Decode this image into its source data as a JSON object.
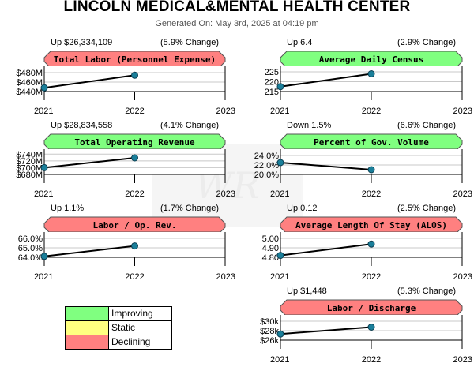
{
  "title": "LINCOLN MEDICAL&MENTAL HEALTH CENTER",
  "subtitle": "Generated On: May 3rd, 2025 at 04:19 pm",
  "colors": {
    "improving": "#80ff80",
    "static": "#ffff80",
    "declining": "#ff8080",
    "line": "#000000",
    "point": "#1a7f9a"
  },
  "legend": [
    {
      "label": "Improving",
      "color": "#80ff80"
    },
    {
      "label": "Static",
      "color": "#ffff80"
    },
    {
      "label": "Declining",
      "color": "#ff8080"
    }
  ],
  "chart_data": [
    {
      "type": "line",
      "title": "Total Labor (Personnel Expense)",
      "status": "declining",
      "change_text": "Up $26,334,109",
      "pct_text": "(5.9% Change)",
      "x": [
        2021,
        2022
      ],
      "xticks": [
        "2021",
        "2022",
        "2023"
      ],
      "xlim": [
        2021,
        2023
      ],
      "values": [
        448000000,
        474500000
      ],
      "ylim": [
        440000000,
        490000000
      ],
      "yticks": [
        440000000,
        460000000,
        480000000
      ],
      "yticklabels": [
        "$440M",
        "$460M",
        "$480M"
      ]
    },
    {
      "type": "line",
      "title": "Average Daily Census",
      "status": "improving",
      "change_text": "Up 6.4",
      "pct_text": "(2.9% Change)",
      "x": [
        2021,
        2022
      ],
      "xticks": [
        "2021",
        "2022",
        "2023"
      ],
      "xlim": [
        2021,
        2023
      ],
      "values": [
        217.5,
        224.0
      ],
      "ylim": [
        215,
        227
      ],
      "yticks": [
        215,
        220,
        225
      ],
      "yticklabels": [
        "215",
        "220",
        "225"
      ]
    },
    {
      "type": "line",
      "title": "Total Operating Revenue",
      "status": "improving",
      "change_text": "Up $28,834,558",
      "pct_text": "(4.1% Change)",
      "x": [
        2021,
        2022
      ],
      "xticks": [
        "2021",
        "2022",
        "2023"
      ],
      "xlim": [
        2021,
        2023
      ],
      "values": [
        700000000,
        729000000
      ],
      "ylim": [
        680000000,
        750000000
      ],
      "yticks": [
        680000000,
        700000000,
        720000000,
        740000000
      ],
      "yticklabels": [
        "$680M",
        "$700M",
        "$720M",
        "$740M"
      ]
    },
    {
      "type": "line",
      "title": "Percent of Gov. Volume",
      "status": "improving",
      "change_text": "Down 1.5%",
      "pct_text": "(6.6% Change)",
      "x": [
        2021,
        2022
      ],
      "xticks": [
        "2021",
        "2022",
        "2023"
      ],
      "xlim": [
        2021,
        2023
      ],
      "values": [
        22.5,
        21.0
      ],
      "ylim": [
        20.0,
        25.0
      ],
      "yticks": [
        20.0,
        22.0,
        24.0
      ],
      "yticklabels": [
        "20.0%",
        "22.0%",
        "24.0%"
      ]
    },
    {
      "type": "line",
      "title": "Labor / Op. Rev.",
      "status": "declining",
      "change_text": "Up 1.1%",
      "pct_text": "(1.7% Change)",
      "x": [
        2021,
        2022
      ],
      "xticks": [
        "2021",
        "2022",
        "2023"
      ],
      "xlim": [
        2021,
        2023
      ],
      "values": [
        64.1,
        65.2
      ],
      "ylim": [
        64.0,
        66.5
      ],
      "yticks": [
        64.0,
        65.0,
        66.0
      ],
      "yticklabels": [
        "64.0%",
        "65.0%",
        "66.0%"
      ]
    },
    {
      "type": "line",
      "title": "Average Length Of Stay (ALOS)",
      "status": "declining",
      "change_text": "Up 0.12",
      "pct_text": "(2.5% Change)",
      "x": [
        2021,
        2022
      ],
      "xticks": [
        "2021",
        "2022",
        "2023"
      ],
      "xlim": [
        2021,
        2023
      ],
      "values": [
        4.82,
        4.94
      ],
      "ylim": [
        4.8,
        5.05
      ],
      "yticks": [
        4.8,
        4.9,
        5.0
      ],
      "yticklabels": [
        "4.80",
        "4.90",
        "5.00"
      ]
    },
    {
      "type": "line",
      "title": "Labor / Discharge",
      "status": "declining",
      "change_text": "Up $1,448",
      "pct_text": "(5.3% Change)",
      "x": [
        2021,
        2022
      ],
      "xticks": [
        "2021",
        "2022",
        "2023"
      ],
      "xlim": [
        2021,
        2023
      ],
      "values": [
        27300,
        28750
      ],
      "ylim": [
        26000,
        31000
      ],
      "yticks": [
        26000,
        28000,
        30000
      ],
      "yticklabels": [
        "$26k",
        "$28k",
        "$30k"
      ]
    }
  ]
}
